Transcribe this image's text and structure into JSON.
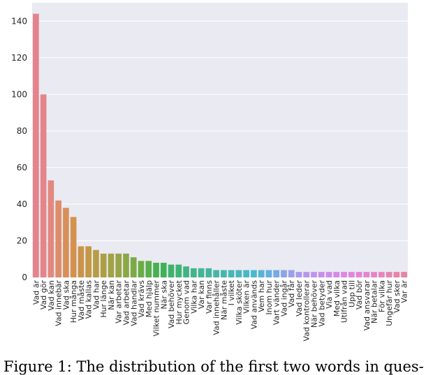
{
  "caption": "Figure 1: The distribution of the first two words in ques-",
  "chart_data": {
    "type": "bar",
    "title": "",
    "xlabel": "",
    "ylabel": "",
    "ylim": [
      0,
      150
    ],
    "yticks": [
      0,
      20,
      40,
      60,
      80,
      100,
      120,
      140
    ],
    "grid": true,
    "categories": [
      "Vad är",
      "Vad gör",
      "Vad kan",
      "Vad innebär",
      "Vad ska",
      "Hur många",
      "Vad måste",
      "Vad kallas",
      "Vad har",
      "Hur länge",
      "När kan",
      "Var arbetar",
      "Vad arbetar",
      "Vad handlar",
      "Vad krävs",
      "Med hjälp",
      "Vilket nummer",
      "När ska",
      "Vad behöver",
      "Hur mycket",
      "Genom vad",
      "Vilka har",
      "Var kan",
      "Var finns",
      "Vad innehåller",
      "När måste",
      "I vilket",
      "Vilka sköter",
      "Vilken är",
      "Vad används",
      "Vem har",
      "Inom hur",
      "Vart vänder",
      "Vad ingår",
      "Vad får",
      "Vad leder",
      "Vad kontrollerar",
      "När behöver",
      "Vad betyder",
      "Via vad",
      "Med vilka",
      "Utifrån vad",
      "Upp till",
      "Vad bör",
      "Vad ansvarar",
      "När betalar",
      "För vilka",
      "Ungefär hur",
      "Vad sker",
      "Var är"
    ],
    "values": [
      144,
      100,
      53,
      42,
      38,
      33,
      17,
      17,
      15,
      13,
      13,
      13,
      13,
      11,
      9,
      9,
      8,
      8,
      7,
      7,
      6,
      5,
      5,
      5,
      4,
      4,
      4,
      4,
      4,
      4,
      4,
      4,
      4,
      4,
      4,
      3,
      3,
      3,
      3,
      3,
      3,
      3,
      3,
      3,
      3,
      3,
      3,
      3,
      3,
      3
    ],
    "colors": [
      "#e5828b",
      "#e3858a",
      "#e2887f",
      "#de8c6a",
      "#d98f58",
      "#d3924d",
      "#cb9549",
      "#c39847",
      "#b89c46",
      "#ad9f46",
      "#a2a247",
      "#97a546",
      "#8aa845",
      "#7cab44",
      "#6bad45",
      "#58b049",
      "#45b150",
      "#3eb25b",
      "#3fb368",
      "#40b474",
      "#41b480",
      "#42b58b",
      "#43b595",
      "#44b59e",
      "#45b6a6",
      "#46b6ae",
      "#47b7b6",
      "#48b7be",
      "#49b8c6",
      "#4bb8ce",
      "#52b5d6",
      "#63b0dd",
      "#76aae2",
      "#8aa5e6",
      "#9ca0ea",
      "#a99bec",
      "#b597ed",
      "#bf93ed",
      "#c78fec",
      "#cf8ceb",
      "#d689e8",
      "#dc87e4",
      "#e086df",
      "#e385d8",
      "#e584d0",
      "#e684c7",
      "#e784be",
      "#e784b4",
      "#e785aa",
      "#e686a0"
    ]
  }
}
